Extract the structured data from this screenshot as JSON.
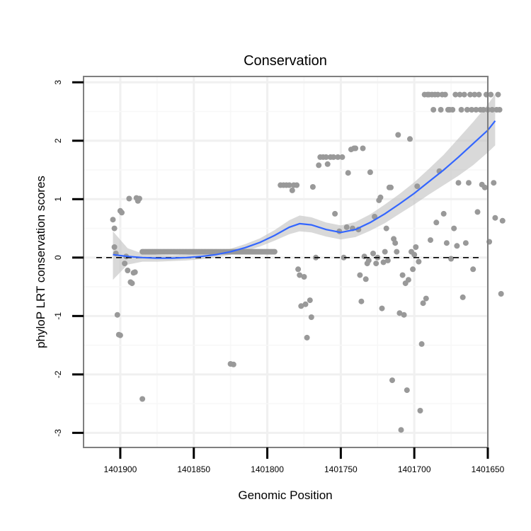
{
  "chart_data": {
    "type": "scatter",
    "title": "Conservation",
    "xlabel": "Genomic Position",
    "ylabel": "phyloP LRT conservation scores",
    "x_reversed": true,
    "xlim": [
      1401925,
      1401650
    ],
    "ylim": [
      -3.25,
      3.1
    ],
    "x_ticks": [
      1401900,
      1401850,
      1401800,
      1401750,
      1401700,
      1401650
    ],
    "x_tick_labels": [
      "1401900",
      "1401850",
      "1401800",
      "1401750",
      "1401700",
      "1401650"
    ],
    "y_ticks": [
      -3,
      -2,
      -1,
      0,
      1,
      2,
      3
    ],
    "y_tick_labels": [
      "-3",
      "-2",
      "-1",
      "0",
      "1",
      "2",
      "3"
    ],
    "reference_line": {
      "y": 0,
      "style": "dashed"
    },
    "colors": {
      "points": "#999999",
      "smooth": "#3366ff",
      "ribbon": "#bfbfbf"
    },
    "series": [
      {
        "name": "scores",
        "points": [
          [
            1401905,
            0.65
          ],
          [
            1401904,
            0.5
          ],
          [
            1401904,
            0.18
          ],
          [
            1401903,
            0.07
          ],
          [
            1401902,
            -0.98
          ],
          [
            1401901,
            -1.32
          ],
          [
            1401900,
            -1.33
          ],
          [
            1401900,
            0.8
          ],
          [
            1401899,
            0.77
          ],
          [
            1401897,
            -0.1
          ],
          [
            1401896,
            0.02
          ],
          [
            1401895,
            -0.22
          ],
          [
            1401894,
            1.01
          ],
          [
            1401893,
            -0.42
          ],
          [
            1401892,
            -0.44
          ],
          [
            1401891,
            -0.26
          ],
          [
            1401890,
            -0.25
          ],
          [
            1401889,
            1.02
          ],
          [
            1401888,
            0.97
          ],
          [
            1401887,
            1.01
          ],
          [
            1401885,
            -2.42
          ],
          [
            1401825,
            -1.82
          ],
          [
            1401823,
            -1.83
          ],
          [
            1401791,
            1.24
          ],
          [
            1401789,
            1.24
          ],
          [
            1401787,
            1.24
          ],
          [
            1401785,
            1.24
          ],
          [
            1401783,
            1.15
          ],
          [
            1401782,
            1.24
          ],
          [
            1401780,
            1.24
          ],
          [
            1401779,
            -0.2
          ],
          [
            1401778,
            -0.3
          ],
          [
            1401777,
            -0.83
          ],
          [
            1401775,
            -0.33
          ],
          [
            1401774,
            -0.8
          ],
          [
            1401773,
            -1.37
          ],
          [
            1401771,
            -0.73
          ],
          [
            1401770,
            -1.02
          ],
          [
            1401769,
            1.21
          ],
          [
            1401767,
            0.0
          ],
          [
            1401765,
            1.58
          ],
          [
            1401764,
            1.72
          ],
          [
            1401762,
            1.72
          ],
          [
            1401760,
            1.72
          ],
          [
            1401759,
            1.6
          ],
          [
            1401757,
            1.72
          ],
          [
            1401755,
            1.72
          ],
          [
            1401754,
            0.75
          ],
          [
            1401752,
            1.72
          ],
          [
            1401751,
            0.45
          ],
          [
            1401749,
            1.72
          ],
          [
            1401748,
            0.0
          ],
          [
            1401746,
            0.52
          ],
          [
            1401745,
            1.45
          ],
          [
            1401743,
            1.85
          ],
          [
            1401742,
            0.5
          ],
          [
            1401741,
            1.87
          ],
          [
            1401740,
            1.87
          ],
          [
            1401738,
            0.48
          ],
          [
            1401737,
            -0.3
          ],
          [
            1401736,
            -0.75
          ],
          [
            1401735,
            1.87
          ],
          [
            1401734,
            0.02
          ],
          [
            1401733,
            -0.37
          ],
          [
            1401732,
            -0.1
          ],
          [
            1401731,
            -0.05
          ],
          [
            1401730,
            1.46
          ],
          [
            1401728,
            0.07
          ],
          [
            1401727,
            0.7
          ],
          [
            1401726,
            -0.1
          ],
          [
            1401725,
            -0.0
          ],
          [
            1401724,
            0.98
          ],
          [
            1401723,
            1.03
          ],
          [
            1401722,
            -0.87
          ],
          [
            1401721,
            -0.08
          ],
          [
            1401720,
            0.1
          ],
          [
            1401719,
            0.5
          ],
          [
            1401718,
            -0.05
          ],
          [
            1401717,
            1.2
          ],
          [
            1401716,
            1.2
          ],
          [
            1401715,
            -2.1
          ],
          [
            1401714,
            0.32
          ],
          [
            1401713,
            0.25
          ],
          [
            1401712,
            0.1
          ],
          [
            1401711,
            2.1
          ],
          [
            1401710,
            -0.95
          ],
          [
            1401709,
            -2.95
          ],
          [
            1401708,
            -0.3
          ],
          [
            1401707,
            -0.98
          ],
          [
            1401706,
            -0.44
          ],
          [
            1401705,
            -2.27
          ],
          [
            1401704,
            -0.38
          ],
          [
            1401703,
            2.03
          ],
          [
            1401702,
            0.1
          ],
          [
            1401701,
            -0.2
          ],
          [
            1401700,
            0.05
          ],
          [
            1401699,
            0.18
          ],
          [
            1401698,
            1.22
          ],
          [
            1401697,
            -0.07
          ],
          [
            1401696,
            -2.62
          ],
          [
            1401695,
            -1.48
          ],
          [
            1401694,
            -0.78
          ],
          [
            1401693,
            2.79
          ],
          [
            1401692,
            -0.7
          ],
          [
            1401691,
            2.79
          ],
          [
            1401690,
            2.79
          ],
          [
            1401689,
            0.3
          ],
          [
            1401688,
            2.79
          ],
          [
            1401687,
            2.53
          ],
          [
            1401686,
            2.79
          ],
          [
            1401685,
            0.6
          ],
          [
            1401684,
            2.79
          ],
          [
            1401683,
            1.48
          ],
          [
            1401682,
            2.53
          ],
          [
            1401681,
            2.79
          ],
          [
            1401680,
            0.75
          ],
          [
            1401679,
            2.79
          ],
          [
            1401678,
            0.25
          ],
          [
            1401677,
            2.53
          ],
          [
            1401676,
            2.53
          ],
          [
            1401675,
            -0.02
          ],
          [
            1401674,
            2.53
          ],
          [
            1401673,
            0.5
          ],
          [
            1401672,
            2.79
          ],
          [
            1401671,
            0.2
          ],
          [
            1401670,
            1.28
          ],
          [
            1401669,
            2.79
          ],
          [
            1401668,
            2.53
          ],
          [
            1401667,
            -0.68
          ],
          [
            1401666,
            2.79
          ],
          [
            1401665,
            0.25
          ],
          [
            1401664,
            2.53
          ],
          [
            1401663,
            1.28
          ],
          [
            1401662,
            2.79
          ],
          [
            1401661,
            2.53
          ],
          [
            1401660,
            -0.2
          ],
          [
            1401659,
            2.79
          ],
          [
            1401658,
            2.53
          ],
          [
            1401657,
            0.78
          ],
          [
            1401656,
            2.79
          ],
          [
            1401655,
            2.53
          ],
          [
            1401654,
            1.25
          ],
          [
            1401653,
            2.53
          ],
          [
            1401652,
            1.2
          ],
          [
            1401651,
            2.79
          ],
          [
            1401650,
            2.53
          ],
          [
            1401649,
            0.27
          ],
          [
            1401648,
            2.79
          ],
          [
            1401647,
            2.53
          ],
          [
            1401646,
            1.28
          ],
          [
            1401645,
            0.68
          ],
          [
            1401644,
            2.53
          ],
          [
            1401643,
            2.79
          ],
          [
            1401642,
            2.53
          ],
          [
            1401641,
            -0.62
          ],
          [
            1401640,
            0.63
          ]
        ],
        "flat_run": {
          "x_from": 1401885,
          "x_to": 1401795,
          "y": 0.1
        }
      }
    ],
    "smooth": {
      "method": "loess",
      "x": [
        1401905,
        1401895,
        1401885,
        1401875,
        1401865,
        1401855,
        1401845,
        1401835,
        1401825,
        1401815,
        1401805,
        1401795,
        1401785,
        1401778,
        1401770,
        1401760,
        1401750,
        1401740,
        1401730,
        1401720,
        1401710,
        1401700,
        1401690,
        1401680,
        1401670,
        1401660,
        1401650,
        1401645
      ],
      "y": [
        0.05,
        0.02,
        0.0,
        -0.01,
        -0.01,
        0.0,
        0.02,
        0.05,
        0.1,
        0.17,
        0.26,
        0.38,
        0.52,
        0.58,
        0.56,
        0.48,
        0.43,
        0.48,
        0.6,
        0.75,
        0.92,
        1.1,
        1.3,
        1.5,
        1.72,
        1.95,
        2.18,
        2.34
      ],
      "lower": [
        -0.38,
        -0.12,
        -0.07,
        -0.07,
        -0.06,
        -0.05,
        -0.03,
        0.0,
        0.05,
        0.11,
        0.19,
        0.29,
        0.4,
        0.45,
        0.43,
        0.36,
        0.31,
        0.35,
        0.46,
        0.59,
        0.75,
        0.91,
        1.08,
        1.24,
        1.4,
        1.58,
        1.8,
        1.92
      ],
      "upper": [
        0.45,
        0.16,
        0.07,
        0.05,
        0.04,
        0.05,
        0.07,
        0.1,
        0.15,
        0.23,
        0.33,
        0.47,
        0.64,
        0.72,
        0.69,
        0.6,
        0.55,
        0.61,
        0.74,
        0.91,
        1.09,
        1.29,
        1.52,
        1.76,
        2.04,
        2.32,
        2.62,
        2.8
      ]
    }
  }
}
